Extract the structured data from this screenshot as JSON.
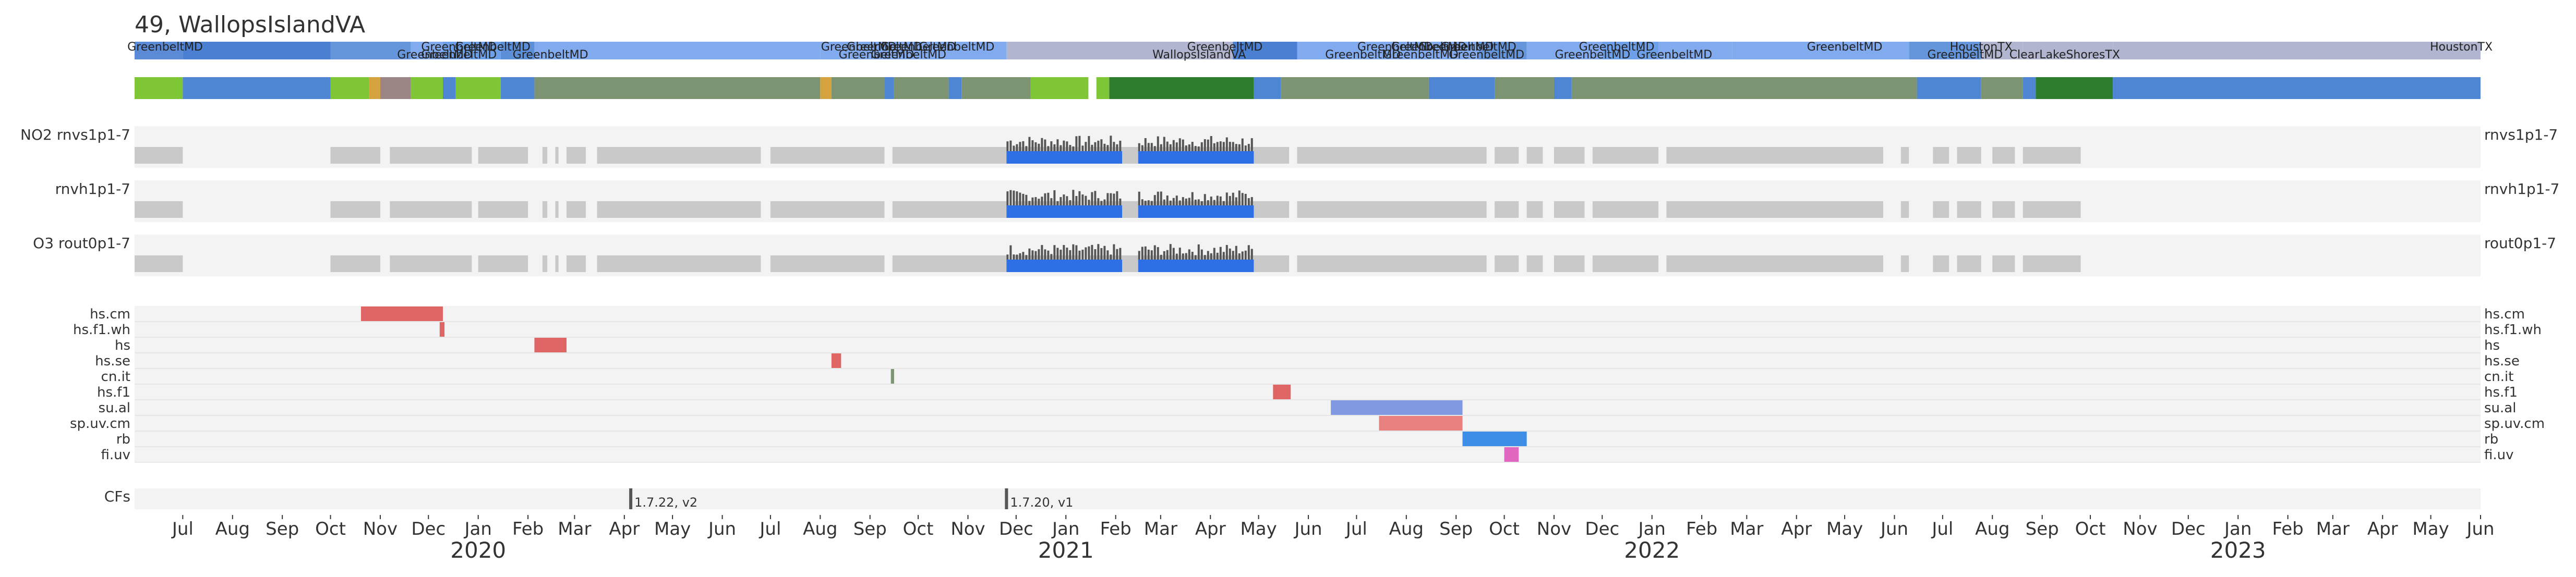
{
  "chart_data": {
    "type": "timeline",
    "title": "49, WallopsIslandVA",
    "x_axis": {
      "type": "date",
      "range": [
        "2019-06-01",
        "2023-06-01"
      ],
      "month_labels": [
        "Jul",
        "Aug",
        "Sep",
        "Oct",
        "Nov",
        "Dec",
        "Jan",
        "Feb",
        "Mar",
        "Apr",
        "May",
        "Jun",
        "Jul",
        "Aug",
        "Sep",
        "Oct",
        "Nov",
        "Dec",
        "Jan",
        "Feb",
        "Mar",
        "Apr",
        "May",
        "Jun",
        "Jul",
        "Aug",
        "Sep",
        "Oct",
        "Nov",
        "Dec",
        "Jan",
        "Feb",
        "Mar",
        "Apr",
        "May",
        "Jun",
        "Jul",
        "Aug",
        "Sep",
        "Oct",
        "Nov",
        "Dec",
        "Jan",
        "Feb",
        "Mar",
        "Apr",
        "May",
        "Jun"
      ],
      "year_labels": [
        "2020",
        "2021",
        "2022",
        "2023"
      ]
    },
    "locations": [
      {
        "label": "GreenbeltMD",
        "start": "2019-06-01",
        "end": "2019-07-01",
        "color": "#5b8bd6"
      },
      {
        "label": "GreenbeltMD",
        "start": "2019-07-01",
        "end": "2019-10-01",
        "color": "#4a7fd2"
      },
      {
        "label": "GreenbeltMD",
        "start": "2019-10-01",
        "end": "2019-11-20",
        "color": "#6596dc"
      },
      {
        "label": "GreenbeltMD",
        "start": "2019-11-20",
        "end": "2019-12-10",
        "color": "#82aaee"
      },
      {
        "label": "GreenbeltMD",
        "start": "2019-12-10",
        "end": "2020-01-15",
        "color": "#6da0e8"
      },
      {
        "label": "GreenbeltMD",
        "start": "2020-01-15",
        "end": "2020-02-05",
        "color": "#5c8fd8"
      },
      {
        "label": "GreenbeltMD",
        "start": "2020-02-05",
        "end": "2020-08-01",
        "color": "#82aaee"
      },
      {
        "label": "GreenbeltMD",
        "start": "2020-08-01",
        "end": "2020-08-20",
        "color": "#82aaee"
      },
      {
        "label": "GreenbeltMD",
        "start": "2020-08-20",
        "end": "2020-09-10",
        "color": "#82aaee"
      },
      {
        "label": "GreenbeltMD",
        "start": "2020-09-10",
        "end": "2020-10-01",
        "color": "#82aaee"
      },
      {
        "label": "GreenbeltMD",
        "start": "2020-10-01",
        "end": "2020-11-25",
        "color": "#82aaee"
      },
      {
        "label": "WallopsIslandVA",
        "start": "2020-11-25",
        "end": "2021-04-15",
        "color": "#b2b5cf"
      },
      {
        "label": "GreenbeltMD",
        "start": "2021-04-15",
        "end": "2021-05-25",
        "color": "#4a7fd2"
      },
      {
        "label": "GreenbeltMD",
        "start": "2021-05-25",
        "end": "2021-08-15",
        "color": "#82aaee"
      },
      {
        "label": "GreenbeltMD",
        "start": "2021-08-15",
        "end": "2021-09-15",
        "color": "#82aaee"
      },
      {
        "label": "GreenbeltMD",
        "start": "2021-09-15",
        "end": "2021-10-15",
        "color": "#6596dc"
      },
      {
        "label": "GreenbeltMD",
        "start": "2021-10-15",
        "end": "2021-12-01",
        "color": "#82aaee"
      },
      {
        "label": "GreenbeltMD",
        "start": "2021-12-01",
        "end": "2022-01-05",
        "color": "#6da0e8"
      },
      {
        "label": "GreenbeltMD",
        "start": "2022-01-05",
        "end": "2022-02-20",
        "color": "#82aaee"
      },
      {
        "label": "GreenbeltMD",
        "start": "2022-02-20",
        "end": "2022-06-10",
        "color": "#82aaee"
      },
      {
        "label": "GreenbeltMD",
        "start": "2022-06-10",
        "end": "2022-07-25",
        "color": "#6596dc"
      },
      {
        "label": "HoustonTX",
        "start": "2022-07-25",
        "end": "2022-08-20",
        "color": "#b2b5cf"
      },
      {
        "label": "ClearLakeShoresTX",
        "start": "2022-08-20",
        "end": "2022-10-15",
        "color": "#b2b5cf"
      },
      {
        "label": "HoustonTX",
        "start": "2022-10-15",
        "end": "2023-06-01",
        "color": "#b2b5cf"
      }
    ],
    "location_labels": [
      {
        "text": "GreenbeltMD",
        "date": "2019-06-20",
        "row": 0
      },
      {
        "text": "GreenbeltMD",
        "date": "2019-12-05",
        "row": 1
      },
      {
        "text": "GreenbeltMD",
        "date": "2019-12-20",
        "row": 0
      },
      {
        "text": "GreenbeltMD",
        "date": "2020-01-10",
        "row": 0
      },
      {
        "text": "GreenbeltMD",
        "date": "2019-12-20",
        "row": 1
      },
      {
        "text": "GreenbeltMD",
        "date": "2020-02-15",
        "row": 1
      },
      {
        "text": "GreenbeltMD",
        "date": "2020-08-25",
        "row": 0
      },
      {
        "text": "GreenbeltMD",
        "date": "2020-09-10",
        "row": 0
      },
      {
        "text": "GreenbeltMD",
        "date": "2020-10-01",
        "row": 0
      },
      {
        "text": "GreenbeltMD",
        "date": "2020-10-25",
        "row": 0
      },
      {
        "text": "GreenbeltMD",
        "date": "2020-09-05",
        "row": 1
      },
      {
        "text": "GreenbeltMD",
        "date": "2020-09-25",
        "row": 1
      },
      {
        "text": "GreenbeltMD",
        "date": "2021-04-10",
        "row": 0
      },
      {
        "text": "WallopsIslandVA",
        "date": "2021-03-25",
        "row": 1
      },
      {
        "text": "GreenbeltMD",
        "date": "2021-07-25",
        "row": 0
      },
      {
        "text": "GreenbeltMD",
        "date": "2021-08-15",
        "row": 0
      },
      {
        "text": "GreenbeltMD",
        "date": "2021-09-01",
        "row": 0
      },
      {
        "text": "GreenbeltMD",
        "date": "2021-09-15",
        "row": 0
      },
      {
        "text": "GreenbeltMD",
        "date": "2021-07-05",
        "row": 1
      },
      {
        "text": "GreenbeltMD",
        "date": "2021-08-10",
        "row": 1
      },
      {
        "text": "GreenbeltMD",
        "date": "2021-09-20",
        "row": 1
      },
      {
        "text": "GreenbeltMD",
        "date": "2021-12-10",
        "row": 0
      },
      {
        "text": "GreenbeltMD",
        "date": "2021-11-25",
        "row": 1
      },
      {
        "text": "GreenbeltMD",
        "date": "2022-01-15",
        "row": 1
      },
      {
        "text": "GreenbeltMD",
        "date": "2022-05-01",
        "row": 0
      },
      {
        "text": "HoustonTX",
        "date": "2022-07-25",
        "row": 0
      },
      {
        "text": "GreenbeltMD",
        "date": "2022-07-15",
        "row": 1
      },
      {
        "text": "ClearLakeShoresTX",
        "date": "2022-09-15",
        "row": 1
      },
      {
        "text": "HoustonTX",
        "date": "2023-05-20",
        "row": 0
      }
    ],
    "status_bar": [
      {
        "start": "2019-06-01",
        "end": "2019-07-01",
        "color": "#7ec636"
      },
      {
        "start": "2019-07-01",
        "end": "2019-10-01",
        "color": "#4f86d4"
      },
      {
        "start": "2019-10-01",
        "end": "2019-10-25",
        "color": "#7ec636"
      },
      {
        "start": "2019-10-25",
        "end": "2019-11-01",
        "color": "#d4a340"
      },
      {
        "start": "2019-11-01",
        "end": "2019-11-20",
        "color": "#9b8585"
      },
      {
        "start": "2019-11-20",
        "end": "2019-12-10",
        "color": "#7ec636"
      },
      {
        "start": "2019-12-10",
        "end": "2019-12-18",
        "color": "#4f86d4"
      },
      {
        "start": "2019-12-18",
        "end": "2020-01-15",
        "color": "#7ec636"
      },
      {
        "start": "2020-01-15",
        "end": "2020-02-05",
        "color": "#4f86d4"
      },
      {
        "start": "2020-02-05",
        "end": "2020-08-01",
        "color": "#7d9473"
      },
      {
        "start": "2020-08-01",
        "end": "2020-08-08",
        "color": "#d4a340"
      },
      {
        "start": "2020-08-08",
        "end": "2020-09-10",
        "color": "#7d9473"
      },
      {
        "start": "2020-09-10",
        "end": "2020-09-16",
        "color": "#4f86d4"
      },
      {
        "start": "2020-09-16",
        "end": "2020-10-20",
        "color": "#7d9473"
      },
      {
        "start": "2020-10-20",
        "end": "2020-10-28",
        "color": "#4f86d4"
      },
      {
        "start": "2020-10-28",
        "end": "2020-12-10",
        "color": "#7d9473"
      },
      {
        "start": "2020-12-10",
        "end": "2021-01-15",
        "color": "#7ec636"
      },
      {
        "start": "2021-01-20",
        "end": "2021-01-28",
        "color": "#7ec636"
      },
      {
        "start": "2021-01-28",
        "end": "2021-04-28",
        "color": "#2e7d2e"
      },
      {
        "start": "2021-04-28",
        "end": "2021-05-15",
        "color": "#4f86d4"
      },
      {
        "start": "2021-05-15",
        "end": "2021-08-15",
        "color": "#7d9473"
      },
      {
        "start": "2021-08-15",
        "end": "2021-09-25",
        "color": "#4f86d4"
      },
      {
        "start": "2021-09-25",
        "end": "2021-11-01",
        "color": "#7d9473"
      },
      {
        "start": "2021-11-01",
        "end": "2021-11-12",
        "color": "#4f86d4"
      },
      {
        "start": "2021-11-12",
        "end": "2022-06-15",
        "color": "#7d9473"
      },
      {
        "start": "2022-06-15",
        "end": "2022-07-25",
        "color": "#4f86d4"
      },
      {
        "start": "2022-07-25",
        "end": "2022-08-20",
        "color": "#7d9473"
      },
      {
        "start": "2022-08-20",
        "end": "2022-08-28",
        "color": "#4f86d4"
      },
      {
        "start": "2022-08-28",
        "end": "2022-10-15",
        "color": "#2e7d2e"
      },
      {
        "start": "2022-10-15",
        "end": "2023-06-01",
        "color": "#4f86d4"
      }
    ],
    "products": [
      {
        "left_label": "NO2  rnvs1p1-7",
        "right_label": "rnvs1p1-7"
      },
      {
        "left_label": "rnvh1p1-7",
        "right_label": "rnvh1p1-7"
      },
      {
        "left_label": "O3  rout0p1-7",
        "right_label": "rout0p1-7"
      }
    ],
    "data_availability": [
      {
        "start": "2019-06-01",
        "end": "2019-07-01"
      },
      {
        "start": "2019-10-01",
        "end": "2019-11-01"
      },
      {
        "start": "2019-11-07",
        "end": "2019-12-28"
      },
      {
        "start": "2020-01-01",
        "end": "2020-02-01"
      },
      {
        "start": "2020-02-10",
        "end": "2020-02-13"
      },
      {
        "start": "2020-02-18",
        "end": "2020-02-20"
      },
      {
        "start": "2020-02-25",
        "end": "2020-03-08"
      },
      {
        "start": "2020-03-15",
        "end": "2020-06-25"
      },
      {
        "start": "2020-07-01",
        "end": "2020-09-10"
      },
      {
        "start": "2020-09-15",
        "end": "2020-11-25"
      },
      {
        "start": "2020-11-30",
        "end": "2021-01-10"
      },
      {
        "start": "2021-01-15",
        "end": "2021-02-15"
      },
      {
        "start": "2021-02-18",
        "end": "2021-04-20"
      },
      {
        "start": "2021-04-25",
        "end": "2021-05-20"
      },
      {
        "start": "2021-05-25",
        "end": "2021-09-20"
      },
      {
        "start": "2021-09-25",
        "end": "2021-10-10"
      },
      {
        "start": "2021-10-15",
        "end": "2021-10-25"
      },
      {
        "start": "2021-11-01",
        "end": "2021-11-20"
      },
      {
        "start": "2021-11-25",
        "end": "2022-01-05"
      },
      {
        "start": "2022-01-10",
        "end": "2022-05-25"
      },
      {
        "start": "2022-06-05",
        "end": "2022-06-10"
      },
      {
        "start": "2022-06-25",
        "end": "2022-07-05"
      },
      {
        "start": "2022-07-10",
        "end": "2022-07-25"
      },
      {
        "start": "2022-08-01",
        "end": "2022-08-15"
      },
      {
        "start": "2022-08-20",
        "end": "2022-09-25"
      }
    ],
    "measurement_period": {
      "start": "2020-11-25",
      "end": "2021-04-28",
      "gap": [
        "2021-02-05",
        "2021-02-15"
      ]
    },
    "flags": [
      {
        "label": "hs.cm",
        "start": "2019-10-20",
        "end": "2019-12-10",
        "color": "#e06666"
      },
      {
        "label": "hs.f1.wh",
        "start": "2019-12-08",
        "end": "2019-12-11",
        "color": "#e06666"
      },
      {
        "label": "hs",
        "start": "2020-02-05",
        "end": "2020-02-25",
        "color": "#e06666"
      },
      {
        "label": "hs.se",
        "start": "2020-08-08",
        "end": "2020-08-14",
        "color": "#e06666"
      },
      {
        "label": "cn.it",
        "start": "2020-09-14",
        "end": "2020-09-16",
        "color": "#7d9473"
      },
      {
        "label": "hs.f1",
        "start": "2021-05-10",
        "end": "2021-05-21",
        "color": "#e06666"
      },
      {
        "label": "su.al",
        "start": "2021-06-15",
        "end": "2021-09-05",
        "color": "#8099e0"
      },
      {
        "label": "sp.uv.cm",
        "start": "2021-07-15",
        "end": "2021-09-05",
        "color": "#e88080"
      },
      {
        "label": "rb",
        "start": "2021-09-05",
        "end": "2021-10-15",
        "color": "#3d8ee6"
      },
      {
        "label": "fi.uv",
        "start": "2021-10-01",
        "end": "2021-10-10",
        "color": "#e066c0"
      }
    ],
    "cfs_label": "CFs",
    "cfs": [
      {
        "label": "1.7.22, v2",
        "date": "2020-04-05"
      },
      {
        "label": "1.7.20, v1",
        "date": "2020-11-25"
      }
    ]
  }
}
